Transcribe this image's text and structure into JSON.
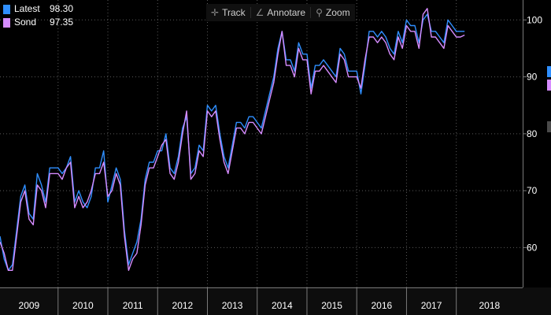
{
  "toolbar": {
    "track": {
      "label": "Track",
      "icon": "crosshair-icon"
    },
    "annotate": {
      "label": "Annotare",
      "icon": "pencil-icon"
    },
    "zoom": {
      "label": "Zoom",
      "icon": "magnifier-icon"
    }
  },
  "legend": {
    "items": [
      {
        "name": "Latest",
        "value": "98.30",
        "color": "#2f8fff"
      },
      {
        "name": "Sond",
        "value": "97.35",
        "color": "#d68cff"
      }
    ]
  },
  "chart_data": {
    "type": "line",
    "xlabel": "",
    "ylabel": "",
    "x_ticks": [
      "2009",
      "2010",
      "2011",
      "2012",
      "2013",
      "2014",
      "2015",
      "2016",
      "2017",
      "2018"
    ],
    "y_ticks": [
      60,
      70,
      80,
      90,
      100
    ],
    "xlim": [
      "2008-11",
      "2019-05"
    ],
    "ylim": [
      53,
      103.5
    ],
    "grid": true,
    "legend_position": "top-left",
    "series": [
      {
        "name": "Latest",
        "color": "#2f8fff",
        "points": [
          [
            "2008-11",
            62
          ],
          [
            "2008-12",
            58
          ],
          [
            "2009-01",
            56
          ],
          [
            "2009-02",
            57
          ],
          [
            "2009-03",
            63
          ],
          [
            "2009-04",
            69
          ],
          [
            "2009-05",
            71
          ],
          [
            "2009-06",
            66
          ],
          [
            "2009-07",
            65
          ],
          [
            "2009-08",
            73
          ],
          [
            "2009-09",
            71
          ],
          [
            "2009-10",
            68
          ],
          [
            "2009-11",
            74
          ],
          [
            "2009-12",
            74
          ],
          [
            "2010-01",
            74
          ],
          [
            "2010-02",
            73
          ],
          [
            "2010-03",
            74
          ],
          [
            "2010-04",
            76
          ],
          [
            "2010-05",
            68
          ],
          [
            "2010-06",
            70
          ],
          [
            "2010-07",
            68
          ],
          [
            "2010-08",
            67
          ],
          [
            "2010-09",
            69
          ],
          [
            "2010-10",
            74
          ],
          [
            "2010-11",
            74
          ],
          [
            "2010-12",
            77
          ],
          [
            "2011-01",
            68
          ],
          [
            "2011-02",
            71
          ],
          [
            "2011-03",
            74
          ],
          [
            "2011-04",
            72
          ],
          [
            "2011-05",
            63
          ],
          [
            "2011-06",
            57
          ],
          [
            "2011-07",
            59
          ],
          [
            "2011-08",
            61
          ],
          [
            "2011-09",
            65
          ],
          [
            "2011-10",
            72
          ],
          [
            "2011-11",
            75
          ],
          [
            "2011-12",
            75
          ],
          [
            "2012-01",
            77
          ],
          [
            "2012-02",
            77
          ],
          [
            "2012-03",
            80
          ],
          [
            "2012-04",
            74
          ],
          [
            "2012-05",
            73
          ],
          [
            "2012-06",
            76
          ],
          [
            "2012-07",
            81
          ],
          [
            "2012-08",
            83
          ],
          [
            "2012-09",
            73
          ],
          [
            "2012-10",
            74
          ],
          [
            "2012-11",
            78
          ],
          [
            "2012-12",
            77
          ],
          [
            "2013-01",
            85
          ],
          [
            "2013-02",
            84
          ],
          [
            "2013-03",
            85
          ],
          [
            "2013-04",
            80
          ],
          [
            "2013-05",
            76
          ],
          [
            "2013-06",
            74
          ],
          [
            "2013-07",
            78
          ],
          [
            "2013-08",
            82
          ],
          [
            "2013-09",
            82
          ],
          [
            "2013-10",
            81
          ],
          [
            "2013-11",
            83
          ],
          [
            "2013-12",
            83
          ],
          [
            "2014-01",
            82
          ],
          [
            "2014-02",
            81
          ],
          [
            "2014-03",
            84
          ],
          [
            "2014-04",
            87
          ],
          [
            "2014-05",
            90
          ],
          [
            "2014-06",
            95
          ],
          [
            "2014-07",
            98
          ],
          [
            "2014-08",
            93
          ],
          [
            "2014-09",
            93
          ],
          [
            "2014-10",
            91
          ],
          [
            "2014-11",
            96
          ],
          [
            "2014-12",
            94
          ],
          [
            "2015-01",
            94
          ],
          [
            "2015-02",
            88
          ],
          [
            "2015-03",
            92
          ],
          [
            "2015-04",
            92
          ],
          [
            "2015-05",
            93
          ],
          [
            "2015-06",
            92
          ],
          [
            "2015-07",
            91
          ],
          [
            "2015-08",
            90
          ],
          [
            "2015-09",
            95
          ],
          [
            "2015-10",
            94
          ],
          [
            "2015-11",
            91
          ],
          [
            "2015-12",
            91
          ],
          [
            "2016-01",
            91
          ],
          [
            "2016-02",
            87
          ],
          [
            "2016-03",
            92
          ],
          [
            "2016-04",
            98
          ],
          [
            "2016-05",
            98
          ],
          [
            "2016-06",
            97
          ],
          [
            "2016-07",
            98
          ],
          [
            "2016-08",
            97
          ],
          [
            "2016-09",
            95
          ],
          [
            "2016-10",
            94
          ],
          [
            "2016-11",
            98
          ],
          [
            "2016-12",
            96
          ],
          [
            "2017-01",
            100
          ],
          [
            "2017-02",
            99
          ],
          [
            "2017-03",
            99
          ],
          [
            "2017-04",
            96
          ],
          [
            "2017-05",
            100
          ],
          [
            "2017-06",
            101
          ],
          [
            "2017-07",
            98
          ],
          [
            "2017-08",
            98
          ],
          [
            "2017-09",
            97
          ],
          [
            "2017-10",
            96
          ],
          [
            "2017-11",
            100
          ],
          [
            "2017-12",
            99
          ],
          [
            "2018-01",
            98
          ],
          [
            "2018-02",
            98
          ],
          [
            "2018-03",
            98
          ]
        ]
      },
      {
        "name": "Sond",
        "color": "#d68cff",
        "points": [
          [
            "2008-11",
            61
          ],
          [
            "2008-12",
            59
          ],
          [
            "2009-01",
            56
          ],
          [
            "2009-02",
            56
          ],
          [
            "2009-03",
            62
          ],
          [
            "2009-04",
            68
          ],
          [
            "2009-05",
            70
          ],
          [
            "2009-06",
            65
          ],
          [
            "2009-07",
            64
          ],
          [
            "2009-08",
            71
          ],
          [
            "2009-09",
            70
          ],
          [
            "2009-10",
            67
          ],
          [
            "2009-11",
            73
          ],
          [
            "2009-12",
            73
          ],
          [
            "2010-01",
            73
          ],
          [
            "2010-02",
            72
          ],
          [
            "2010-03",
            74
          ],
          [
            "2010-04",
            75
          ],
          [
            "2010-05",
            67
          ],
          [
            "2010-06",
            69
          ],
          [
            "2010-07",
            67
          ],
          [
            "2010-08",
            68
          ],
          [
            "2010-09",
            70
          ],
          [
            "2010-10",
            73
          ],
          [
            "2010-11",
            73
          ],
          [
            "2010-12",
            75
          ],
          [
            "2011-01",
            69
          ],
          [
            "2011-02",
            70
          ],
          [
            "2011-03",
            73
          ],
          [
            "2011-04",
            71
          ],
          [
            "2011-05",
            62
          ],
          [
            "2011-06",
            56
          ],
          [
            "2011-07",
            58
          ],
          [
            "2011-08",
            59
          ],
          [
            "2011-09",
            64
          ],
          [
            "2011-10",
            71
          ],
          [
            "2011-11",
            74
          ],
          [
            "2011-12",
            74
          ],
          [
            "2012-01",
            76
          ],
          [
            "2012-02",
            78
          ],
          [
            "2012-03",
            79
          ],
          [
            "2012-04",
            73
          ],
          [
            "2012-05",
            72
          ],
          [
            "2012-06",
            75
          ],
          [
            "2012-07",
            80
          ],
          [
            "2012-08",
            84
          ],
          [
            "2012-09",
            72
          ],
          [
            "2012-10",
            73
          ],
          [
            "2012-11",
            77
          ],
          [
            "2012-12",
            76
          ],
          [
            "2013-01",
            84
          ],
          [
            "2013-02",
            83
          ],
          [
            "2013-03",
            84
          ],
          [
            "2013-04",
            79
          ],
          [
            "2013-05",
            75
          ],
          [
            "2013-06",
            73
          ],
          [
            "2013-07",
            77
          ],
          [
            "2013-08",
            81
          ],
          [
            "2013-09",
            81
          ],
          [
            "2013-10",
            80
          ],
          [
            "2013-11",
            82
          ],
          [
            "2013-12",
            82
          ],
          [
            "2014-01",
            81
          ],
          [
            "2014-02",
            80
          ],
          [
            "2014-03",
            83
          ],
          [
            "2014-04",
            86
          ],
          [
            "2014-05",
            89
          ],
          [
            "2014-06",
            94
          ],
          [
            "2014-07",
            98
          ],
          [
            "2014-08",
            92
          ],
          [
            "2014-09",
            92
          ],
          [
            "2014-10",
            90
          ],
          [
            "2014-11",
            95
          ],
          [
            "2014-12",
            93
          ],
          [
            "2015-01",
            93
          ],
          [
            "2015-02",
            87
          ],
          [
            "2015-03",
            91
          ],
          [
            "2015-04",
            91
          ],
          [
            "2015-05",
            92
          ],
          [
            "2015-06",
            91
          ],
          [
            "2015-07",
            90
          ],
          [
            "2015-08",
            89
          ],
          [
            "2015-09",
            94
          ],
          [
            "2015-10",
            93
          ],
          [
            "2015-11",
            90
          ],
          [
            "2015-12",
            90
          ],
          [
            "2016-01",
            90
          ],
          [
            "2016-02",
            88
          ],
          [
            "2016-03",
            93
          ],
          [
            "2016-04",
            97
          ],
          [
            "2016-05",
            97
          ],
          [
            "2016-06",
            96
          ],
          [
            "2016-07",
            97
          ],
          [
            "2016-08",
            96
          ],
          [
            "2016-09",
            94
          ],
          [
            "2016-10",
            93
          ],
          [
            "2016-11",
            97
          ],
          [
            "2016-12",
            95
          ],
          [
            "2017-01",
            99
          ],
          [
            "2017-02",
            98
          ],
          [
            "2017-03",
            98
          ],
          [
            "2017-04",
            95
          ],
          [
            "2017-05",
            101
          ],
          [
            "2017-06",
            102
          ],
          [
            "2017-07",
            97
          ],
          [
            "2017-08",
            97
          ],
          [
            "2017-09",
            96
          ],
          [
            "2017-10",
            95
          ],
          [
            "2017-11",
            99
          ],
          [
            "2017-12",
            98
          ],
          [
            "2018-01",
            97
          ],
          [
            "2018-02",
            97
          ],
          [
            "2018-03",
            97.35
          ]
        ]
      }
    ]
  }
}
